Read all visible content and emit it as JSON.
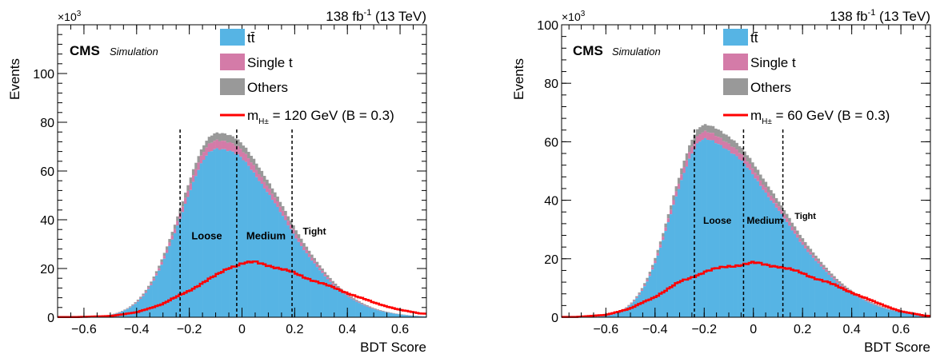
{
  "colors": {
    "ttbar": "#56b4e4",
    "single_t": "#d47ba8",
    "others": "#999999",
    "signal": "#ff0000",
    "frame": "#000000"
  },
  "chart_data": [
    {
      "type": "histogram",
      "lumi": "138 fb",
      "lumi_exp": "-1",
      "energy": " (13 TeV)",
      "scale_base": "×10",
      "scale_exp": "3",
      "cms": "CMS",
      "sim": "Simulation",
      "xlabel": "BDT Score",
      "ylabel": "Events",
      "xlim": [
        -0.7,
        0.7
      ],
      "ylim": [
        0,
        120
      ],
      "xticks": [
        -0.6,
        -0.4,
        -0.2,
        0,
        0.2,
        0.4,
        0.6
      ],
      "xtick_labels": [
        "−0.6",
        "−0.4",
        "−0.2",
        "0",
        "0.2",
        "0.4",
        "0.6"
      ],
      "yticks": [
        0,
        20,
        40,
        60,
        80,
        100
      ],
      "ytick_labels": [
        "0",
        "20",
        "40",
        "60",
        "80",
        "100"
      ],
      "legend": {
        "placement": "top-right",
        "ttbar": "tt̄",
        "single_t": "Single t",
        "others": "Others",
        "sig_m": "m",
        "sig_sub": "H±",
        "sig_rest": " = 120 GeV (B = 0.3)"
      },
      "bkg_shape": {
        "mu": -0.09,
        "sl": 0.14,
        "sr": 0.24
      },
      "ttbar_peak": 69.5,
      "single_t_peak": 3.5,
      "others_peak": 3.0,
      "signal": {
        "x": [
          -0.62,
          -0.5,
          -0.4,
          -0.3,
          -0.2,
          -0.1,
          -0.05,
          0,
          0.05,
          0.1,
          0.2,
          0.3,
          0.4,
          0.5,
          0.6,
          0.68
        ],
        "y": [
          0.1,
          0.5,
          2,
          5.5,
          11,
          17,
          20.5,
          22,
          22.5,
          21.5,
          18,
          14,
          10,
          6,
          3,
          1.5
        ]
      },
      "cuts": [
        {
          "x": -0.235,
          "label": "Loose"
        },
        {
          "x": -0.02,
          "label": "Medium"
        },
        {
          "x": 0.19,
          "label": "Tight"
        }
      ],
      "cut_labels_y": 32,
      "grid": false
    },
    {
      "type": "histogram",
      "lumi": "138 fb",
      "lumi_exp": "-1",
      "energy": " (13 TeV)",
      "scale_base": "×10",
      "scale_exp": "3",
      "cms": "CMS",
      "sim": "Simulation",
      "xlabel": "BDT Score",
      "ylabel": "Events",
      "xlim": [
        -0.78,
        0.72
      ],
      "ylim": [
        0,
        100
      ],
      "xticks": [
        -0.6,
        -0.4,
        -0.2,
        0,
        0.2,
        0.4,
        0.6
      ],
      "xtick_labels": [
        "−0.6",
        "−0.4",
        "−0.2",
        "0",
        "0.2",
        "0.4",
        "0.6"
      ],
      "yticks": [
        0,
        20,
        40,
        60,
        80,
        100
      ],
      "ytick_labels": [
        "0",
        "20",
        "40",
        "60",
        "80",
        "100"
      ],
      "legend": {
        "placement": "top-right",
        "ttbar": "tt̄",
        "single_t": "Single t",
        "others": "Others",
        "sig_m": "m",
        "sig_sub": "H±",
        "sig_rest": " = 60 GeV (B = 0.3)"
      },
      "bkg_shape": {
        "mu": -0.2,
        "sl": 0.13,
        "sr": 0.3
      },
      "ttbar_peak": 60.5,
      "single_t_peak": 2.5,
      "others_peak": 2.5,
      "signal": {
        "x": [
          -0.72,
          -0.6,
          -0.5,
          -0.4,
          -0.3,
          -0.2,
          -0.1,
          0,
          0.1,
          0.2,
          0.3,
          0.4,
          0.5,
          0.6,
          0.7
        ],
        "y": [
          0.1,
          0.8,
          3,
          7,
          12,
          15.5,
          17.5,
          18.5,
          17.5,
          15,
          12,
          8.5,
          5,
          2,
          0.5
        ]
      },
      "cuts": [
        {
          "x": -0.24,
          "label": "Loose"
        },
        {
          "x": -0.04,
          "label": "Medium"
        },
        {
          "x": 0.12,
          "label": "Tight"
        }
      ],
      "cut_labels_y": 32,
      "grid": false
    }
  ]
}
